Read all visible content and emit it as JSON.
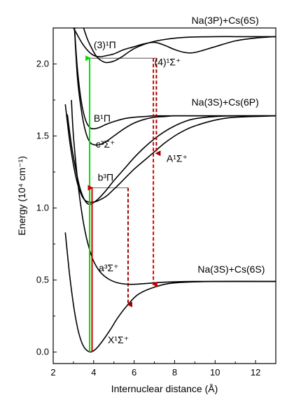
{
  "chart_data": {
    "type": "line",
    "xlabel": "Internuclear distance (Å)",
    "ylabel": "Energy (10⁴ cm⁻¹)",
    "xlim": [
      2,
      13
    ],
    "ylim": [
      -0.08,
      2.25
    ],
    "xticks": [
      "2",
      "4",
      "6",
      "8",
      "10",
      "12"
    ],
    "yticks": [
      "0.0",
      "0.5",
      "1.0",
      "1.5",
      "2.0"
    ],
    "grid": false,
    "legend": "none",
    "asymptote_labels": [
      {
        "text": "Na(3P)+Cs(6S)",
        "x": 10.5,
        "y": 2.28
      },
      {
        "text": "Na(3S)+Cs(6P)",
        "x": 10.5,
        "y": 1.71
      },
      {
        "text": "Na(3S)+Cs(6S)",
        "x": 10.8,
        "y": 0.55
      }
    ],
    "series": [
      {
        "name": "X¹Σ⁺",
        "label_x": 4.7,
        "label_y": 0.06,
        "x": [
          2.6,
          2.8,
          3.0,
          3.2,
          3.4,
          3.6,
          3.85,
          4.1,
          4.4,
          4.8,
          5.2,
          5.7,
          6.2,
          7.0,
          8.0,
          10.0,
          13.0
        ],
        "y": [
          0.83,
          0.55,
          0.33,
          0.17,
          0.07,
          0.02,
          0.0,
          0.02,
          0.07,
          0.15,
          0.24,
          0.33,
          0.4,
          0.45,
          0.48,
          0.49,
          0.49
        ]
      },
      {
        "name": "a³Σ⁺",
        "label_x": 4.25,
        "label_y": 0.56,
        "x": [
          2.9,
          3.0,
          3.2,
          3.4,
          3.6,
          3.8,
          4.0,
          4.3,
          4.7,
          5.2,
          5.8,
          6.5,
          7.5,
          9.0,
          13.0
        ],
        "y": [
          1.75,
          1.5,
          1.2,
          0.98,
          0.82,
          0.71,
          0.63,
          0.56,
          0.51,
          0.48,
          0.47,
          0.475,
          0.485,
          0.49,
          0.49
        ]
      },
      {
        "name": "A¹Σ⁺",
        "label_x": 7.6,
        "label_y": 1.32,
        "x": [
          2.6,
          2.8,
          3.0,
          3.2,
          3.4,
          3.6,
          3.9,
          4.2,
          4.6,
          5.0,
          5.5,
          6.0,
          6.5,
          7.0,
          7.5,
          8.0,
          8.5,
          9.0,
          10.0,
          11.0,
          13.0
        ],
        "y": [
          1.72,
          1.48,
          1.3,
          1.17,
          1.09,
          1.05,
          1.04,
          1.05,
          1.08,
          1.13,
          1.2,
          1.27,
          1.33,
          1.39,
          1.45,
          1.5,
          1.54,
          1.57,
          1.61,
          1.63,
          1.64
        ]
      },
      {
        "name": "b³Π",
        "label_x": 4.2,
        "label_y": 1.19,
        "x": [
          2.7,
          2.9,
          3.1,
          3.3,
          3.5,
          3.7,
          3.9,
          4.2,
          4.6,
          5.0,
          5.5,
          6.0,
          6.5,
          7.0,
          7.5,
          8.0,
          8.5,
          9.0,
          10.0,
          11.0,
          13.0
        ],
        "y": [
          1.65,
          1.44,
          1.28,
          1.15,
          1.07,
          1.03,
          1.03,
          1.06,
          1.12,
          1.19,
          1.27,
          1.35,
          1.42,
          1.48,
          1.53,
          1.57,
          1.6,
          1.62,
          1.635,
          1.64,
          1.64
        ]
      },
      {
        "name": "c³Σ⁺",
        "label_x": 4.1,
        "label_y": 1.42,
        "x": [
          3.05,
          3.2,
          3.4,
          3.6,
          3.8,
          4.0,
          4.3,
          4.6,
          5.0,
          5.5,
          6.0,
          6.5,
          7.0,
          7.5,
          8.0,
          9.0,
          10.0,
          13.0
        ],
        "y": [
          2.25,
          1.9,
          1.67,
          1.53,
          1.46,
          1.44,
          1.44,
          1.46,
          1.5,
          1.55,
          1.59,
          1.615,
          1.63,
          1.635,
          1.64,
          1.64,
          1.64,
          1.64
        ]
      },
      {
        "name": "B¹Π",
        "label_x": 4.0,
        "label_y": 1.6,
        "x": [
          3.05,
          3.2,
          3.4,
          3.6,
          3.8,
          4.0,
          4.3,
          4.6,
          5.0,
          5.5,
          6.0,
          6.5,
          7.0,
          7.5,
          8.0,
          9.0,
          10.0,
          13.0
        ],
        "y": [
          2.25,
          1.96,
          1.73,
          1.61,
          1.56,
          1.55,
          1.56,
          1.58,
          1.6,
          1.62,
          1.63,
          1.635,
          1.64,
          1.64,
          1.64,
          1.64,
          1.64,
          1.64
        ]
      },
      {
        "name": "(4)¹Σ⁺",
        "label_x": 7.0,
        "label_y": 1.99,
        "x": [
          3.0,
          3.2,
          3.4,
          3.6,
          3.8,
          4.0,
          4.3,
          4.7,
          5.0,
          5.5,
          6.0,
          6.5,
          7.0,
          7.5,
          8.0,
          8.5,
          9.0,
          10.0,
          11.0,
          12.0,
          13.0
        ],
        "y": [
          2.25,
          2.2,
          2.15,
          2.11,
          2.08,
          2.06,
          2.05,
          2.06,
          2.07,
          2.1,
          2.12,
          2.14,
          2.15,
          2.13,
          2.1,
          2.08,
          2.08,
          2.12,
          2.16,
          2.18,
          2.19
        ]
      },
      {
        "name": "(3)¹Π",
        "label_x": 4.0,
        "label_y": 2.11,
        "x": [
          3.5,
          3.7,
          3.9,
          4.1,
          4.3,
          4.6,
          5.0,
          5.4,
          5.8,
          6.2,
          6.8,
          7.5,
          8.5,
          10.0,
          11.0,
          12.0,
          13.0
        ],
        "y": [
          2.25,
          2.17,
          2.11,
          2.06,
          2.03,
          2.01,
          2.02,
          2.05,
          2.09,
          2.12,
          2.15,
          2.17,
          2.185,
          2.19,
          2.19,
          2.19,
          2.19
        ]
      }
    ],
    "transitions": [
      {
        "from": [
          3.8,
          0.0
        ],
        "to": [
          3.8,
          2.04
        ],
        "color": "#00e000",
        "style": "solid",
        "arrow": "end"
      },
      {
        "from": [
          3.92,
          0.0
        ],
        "to": [
          3.92,
          1.14
        ],
        "color": "#cc0000",
        "style": "solid",
        "arrow": "end"
      },
      {
        "from": [
          7.1,
          2.04
        ],
        "to": [
          7.1,
          1.38
        ],
        "color": "#a00000",
        "style": "dashed",
        "arrow": "end"
      },
      {
        "from": [
          6.95,
          2.04
        ],
        "to": [
          6.95,
          0.47
        ],
        "color": "#d00000",
        "style": "dashed",
        "arrow": "end"
      },
      {
        "from": [
          5.7,
          1.14
        ],
        "to": [
          5.7,
          0.33
        ],
        "color": "#a00000",
        "style": "dashed",
        "arrow": "end"
      }
    ],
    "guides": [
      {
        "from": [
          3.8,
          2.04
        ],
        "to": [
          7.1,
          2.04
        ]
      },
      {
        "from": [
          3.92,
          1.14
        ],
        "to": [
          5.7,
          1.14
        ]
      }
    ]
  }
}
